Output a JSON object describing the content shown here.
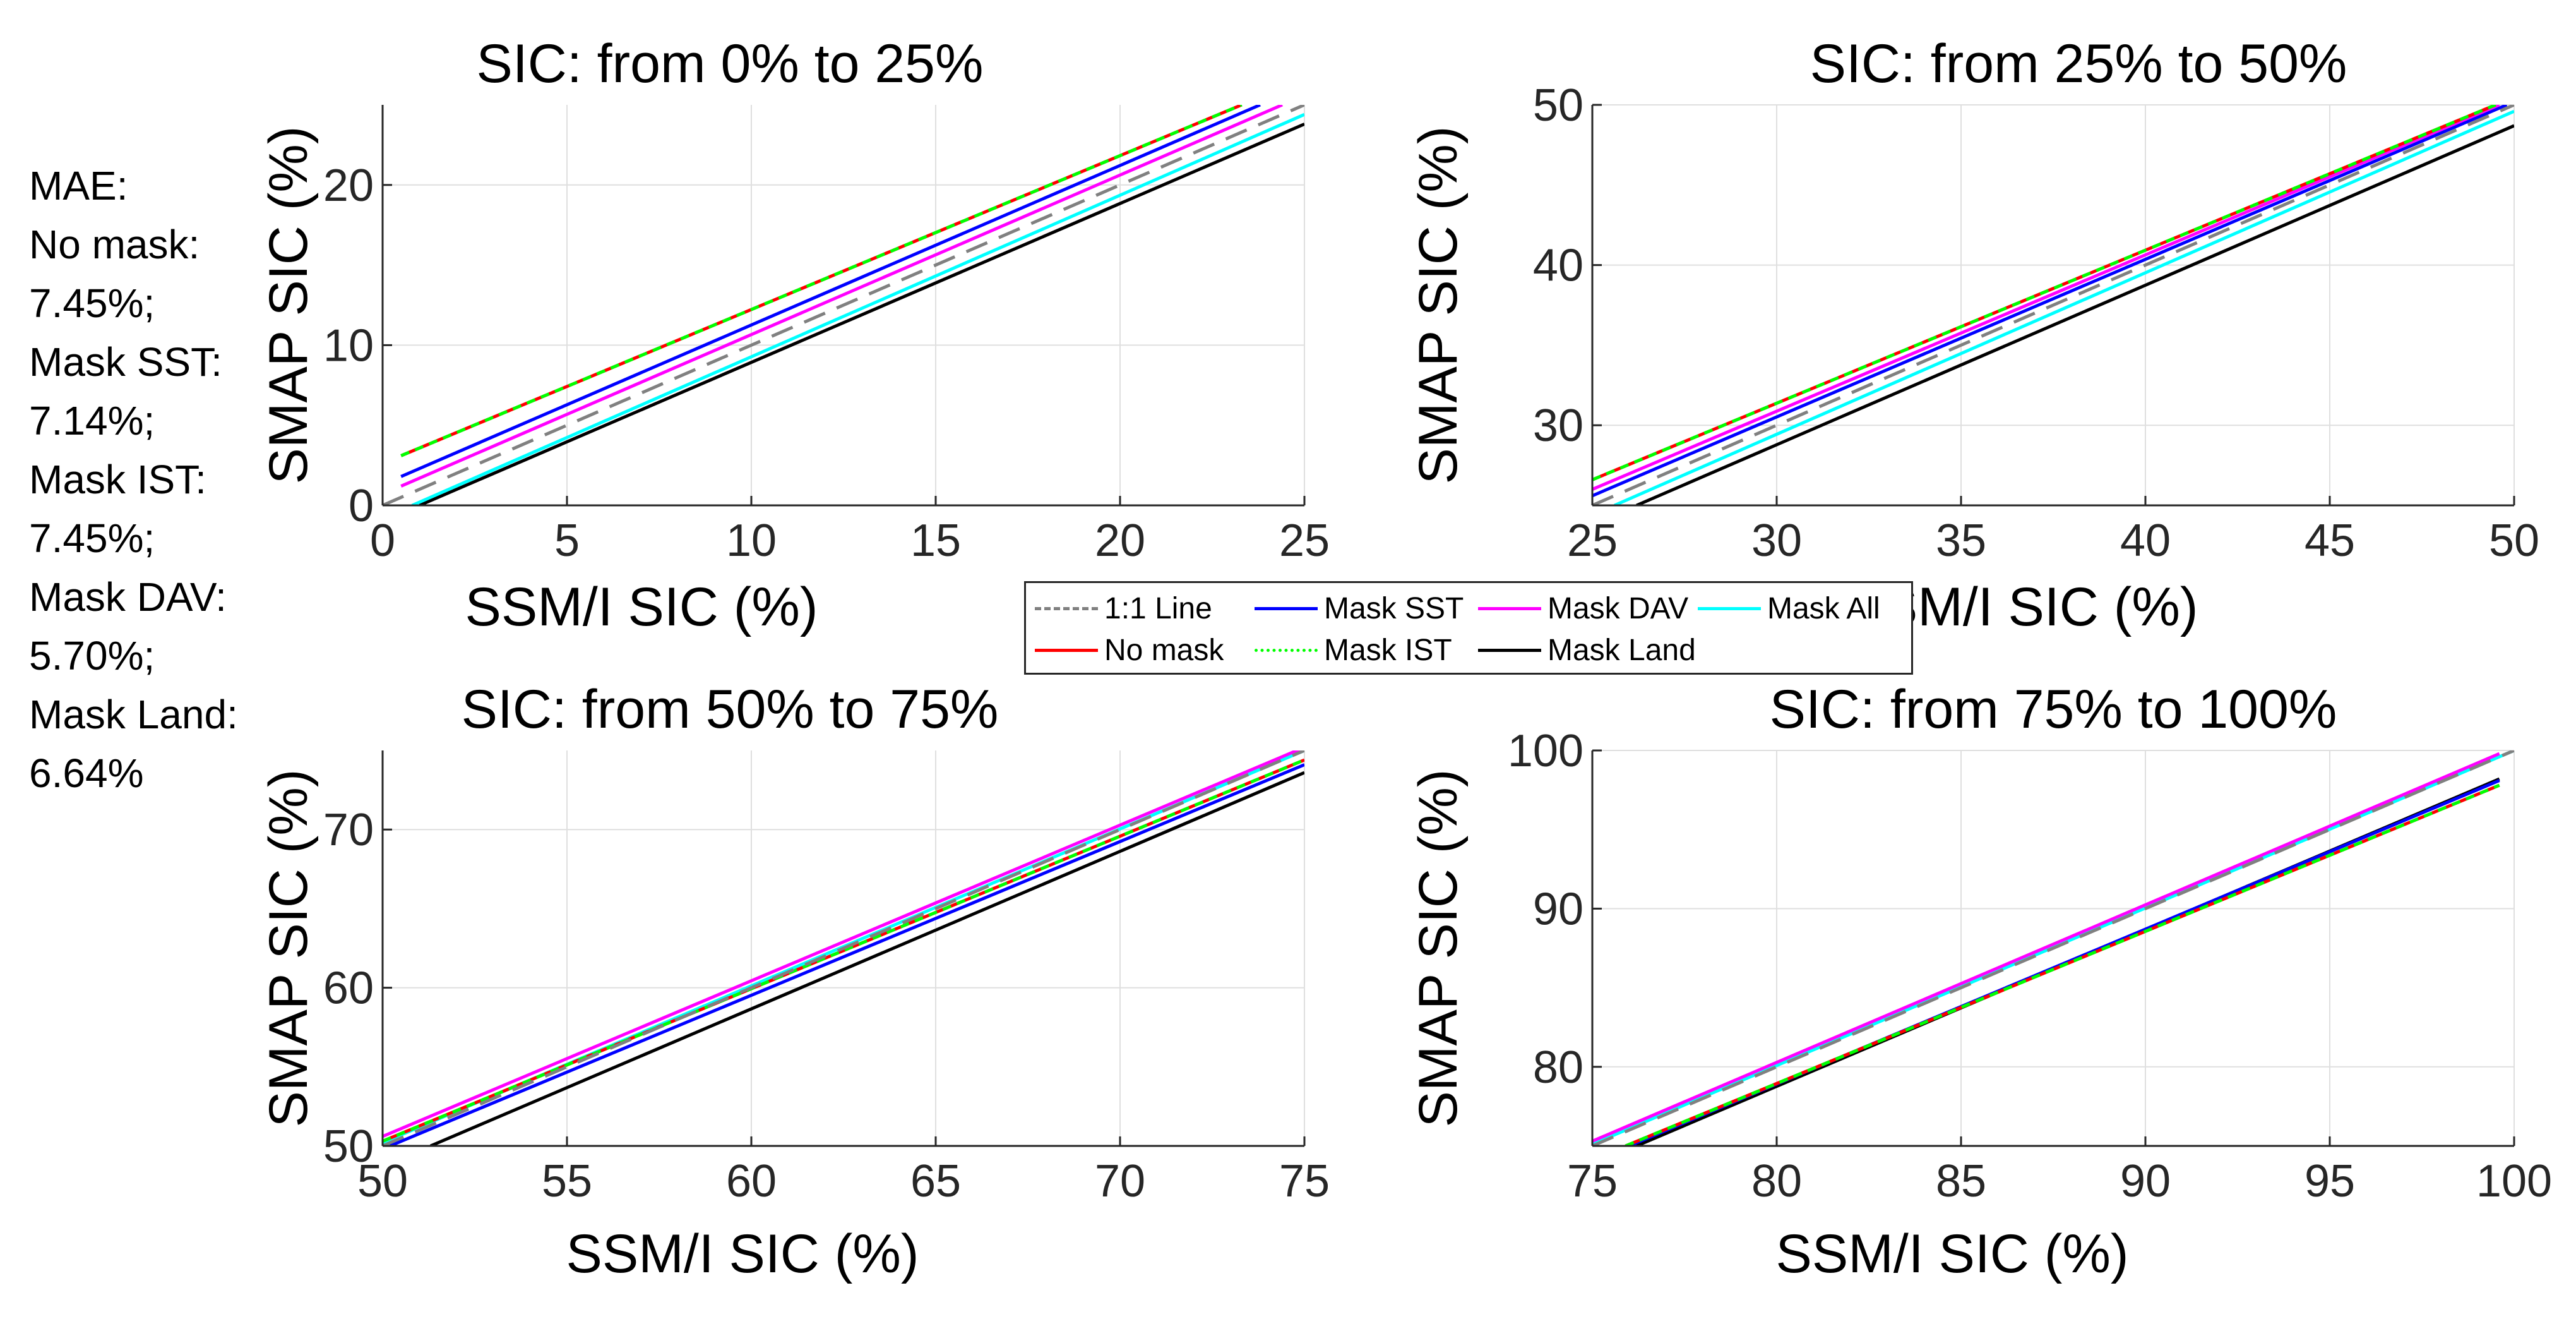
{
  "mae": {
    "title": "MAE:",
    "lines": [
      "No mask:",
      "7.45%;",
      "Mask SST:",
      "7.14%;",
      "Mask IST:",
      "7.45%;",
      "Mask DAV:",
      "5.70%;",
      "Mask Land:",
      "6.64%"
    ]
  },
  "legend": [
    {
      "name": "1:1 Line",
      "color": "#808080",
      "dash": "dashed"
    },
    {
      "name": "Mask SST",
      "color": "#0000ff",
      "dash": "solid"
    },
    {
      "name": "Mask DAV",
      "color": "#ff00ff",
      "dash": "solid"
    },
    {
      "name": "Mask All",
      "color": "#00ffff",
      "dash": "solid"
    },
    {
      "name": "No mask",
      "color": "#ff0000",
      "dash": "solid"
    },
    {
      "name": "Mask IST",
      "color": "#00ff00",
      "dash": "dotted"
    },
    {
      "name": "Mask Land",
      "color": "#000000",
      "dash": "solid"
    }
  ],
  "chart_data": [
    {
      "type": "line",
      "title": "SIC: from 0% to 25%",
      "xlabel": "SSM/I SIC (%)",
      "ylabel": "SMAP SIC (%)",
      "xlim": [
        0,
        25
      ],
      "ylim": [
        0,
        25
      ],
      "xticks": [
        0,
        5,
        10,
        15,
        20,
        25
      ],
      "yticks": [
        0,
        10,
        20
      ],
      "grid": true,
      "series": [
        {
          "name": "No mask",
          "x": [
            0.5,
            23.3
          ],
          "y": [
            3.1,
            25
          ]
        },
        {
          "name": "Mask SST",
          "x": [
            0.5,
            23.8
          ],
          "y": [
            1.8,
            25
          ]
        },
        {
          "name": "Mask IST",
          "x": [
            0.5,
            23.3
          ],
          "y": [
            3.1,
            25
          ]
        },
        {
          "name": "Mask DAV",
          "x": [
            0.5,
            24.4
          ],
          "y": [
            1.2,
            25
          ]
        },
        {
          "name": "Mask Land",
          "x": [
            1.0,
            25
          ],
          "y": [
            0,
            23.8
          ]
        },
        {
          "name": "Mask All",
          "x": [
            0.8,
            25
          ],
          "y": [
            0,
            24.4
          ]
        },
        {
          "name": "1:1 Line",
          "x": [
            0,
            25
          ],
          "y": [
            0,
            25
          ]
        }
      ]
    },
    {
      "type": "line",
      "title": "SIC: from 25% to 50%",
      "xlabel": "SSM/I SIC (%)",
      "ylabel": "SMAP SIC (%)",
      "xlim": [
        25,
        50
      ],
      "ylim": [
        25,
        50
      ],
      "xticks": [
        25,
        30,
        35,
        40,
        45,
        50
      ],
      "yticks": [
        30,
        40,
        50
      ],
      "grid": true,
      "series": [
        {
          "name": "No mask",
          "x": [
            25,
            49.5
          ],
          "y": [
            26.6,
            50
          ]
        },
        {
          "name": "Mask SST",
          "x": [
            25,
            49.8
          ],
          "y": [
            25.6,
            50
          ]
        },
        {
          "name": "Mask IST",
          "x": [
            25,
            49.5
          ],
          "y": [
            26.6,
            50
          ]
        },
        {
          "name": "Mask DAV",
          "x": [
            25,
            49.6
          ],
          "y": [
            26.0,
            50
          ]
        },
        {
          "name": "Mask Land",
          "x": [
            26.2,
            50
          ],
          "y": [
            25,
            48.7
          ]
        },
        {
          "name": "Mask All",
          "x": [
            25.6,
            50
          ],
          "y": [
            25,
            49.6
          ]
        },
        {
          "name": "1:1 Line",
          "x": [
            25,
            50
          ],
          "y": [
            25,
            50
          ]
        }
      ]
    },
    {
      "type": "line",
      "title": "SIC: from 50% to 75%",
      "xlabel": "SSM/I SIC (%)",
      "ylabel": "SMAP SIC (%)",
      "xlim": [
        50,
        75
      ],
      "ylim": [
        50,
        75
      ],
      "xticks": [
        50,
        55,
        60,
        65,
        70,
        75
      ],
      "yticks": [
        50,
        60,
        70
      ],
      "grid": true,
      "series": [
        {
          "name": "No mask",
          "x": [
            50,
            75
          ],
          "y": [
            50.3,
            74.4
          ]
        },
        {
          "name": "Mask SST",
          "x": [
            50.2,
            75
          ],
          "y": [
            50,
            74.1
          ]
        },
        {
          "name": "Mask IST",
          "x": [
            50,
            75
          ],
          "y": [
            50.3,
            74.4
          ]
        },
        {
          "name": "Mask DAV",
          "x": [
            50,
            75
          ],
          "y": [
            50.6,
            75.2
          ]
        },
        {
          "name": "Mask Land",
          "x": [
            51.3,
            75
          ],
          "y": [
            50,
            73.6
          ]
        },
        {
          "name": "Mask All",
          "x": [
            50,
            75
          ],
          "y": [
            50.2,
            75
          ]
        },
        {
          "name": "1:1 Line",
          "x": [
            50,
            75
          ],
          "y": [
            50,
            75
          ]
        }
      ]
    },
    {
      "type": "line",
      "title": "SIC: from 75% to 100%",
      "xlabel": "SSM/I SIC (%)",
      "ylabel": "SMAP SIC (%)",
      "xlim": [
        75,
        100
      ],
      "ylim": [
        75,
        100
      ],
      "xticks": [
        75,
        80,
        85,
        90,
        95,
        100
      ],
      "yticks": [
        80,
        90,
        100
      ],
      "grid": true,
      "series": [
        {
          "name": "No mask",
          "x": [
            75.9,
            99.6
          ],
          "y": [
            75,
            97.8
          ]
        },
        {
          "name": "Mask SST",
          "x": [
            76.0,
            99.6
          ],
          "y": [
            75,
            98.1
          ]
        },
        {
          "name": "Mask IST",
          "x": [
            75.9,
            99.6
          ],
          "y": [
            75,
            97.8
          ]
        },
        {
          "name": "Mask DAV",
          "x": [
            75,
            99.6
          ],
          "y": [
            75.3,
            99.8
          ]
        },
        {
          "name": "Mask Land",
          "x": [
            76.2,
            99.6
          ],
          "y": [
            75,
            98.2
          ]
        },
        {
          "name": "Mask All",
          "x": [
            75,
            100
          ],
          "y": [
            75.1,
            100
          ]
        },
        {
          "name": "1:1 Line",
          "x": [
            75,
            100
          ],
          "y": [
            75,
            100
          ]
        }
      ]
    }
  ]
}
